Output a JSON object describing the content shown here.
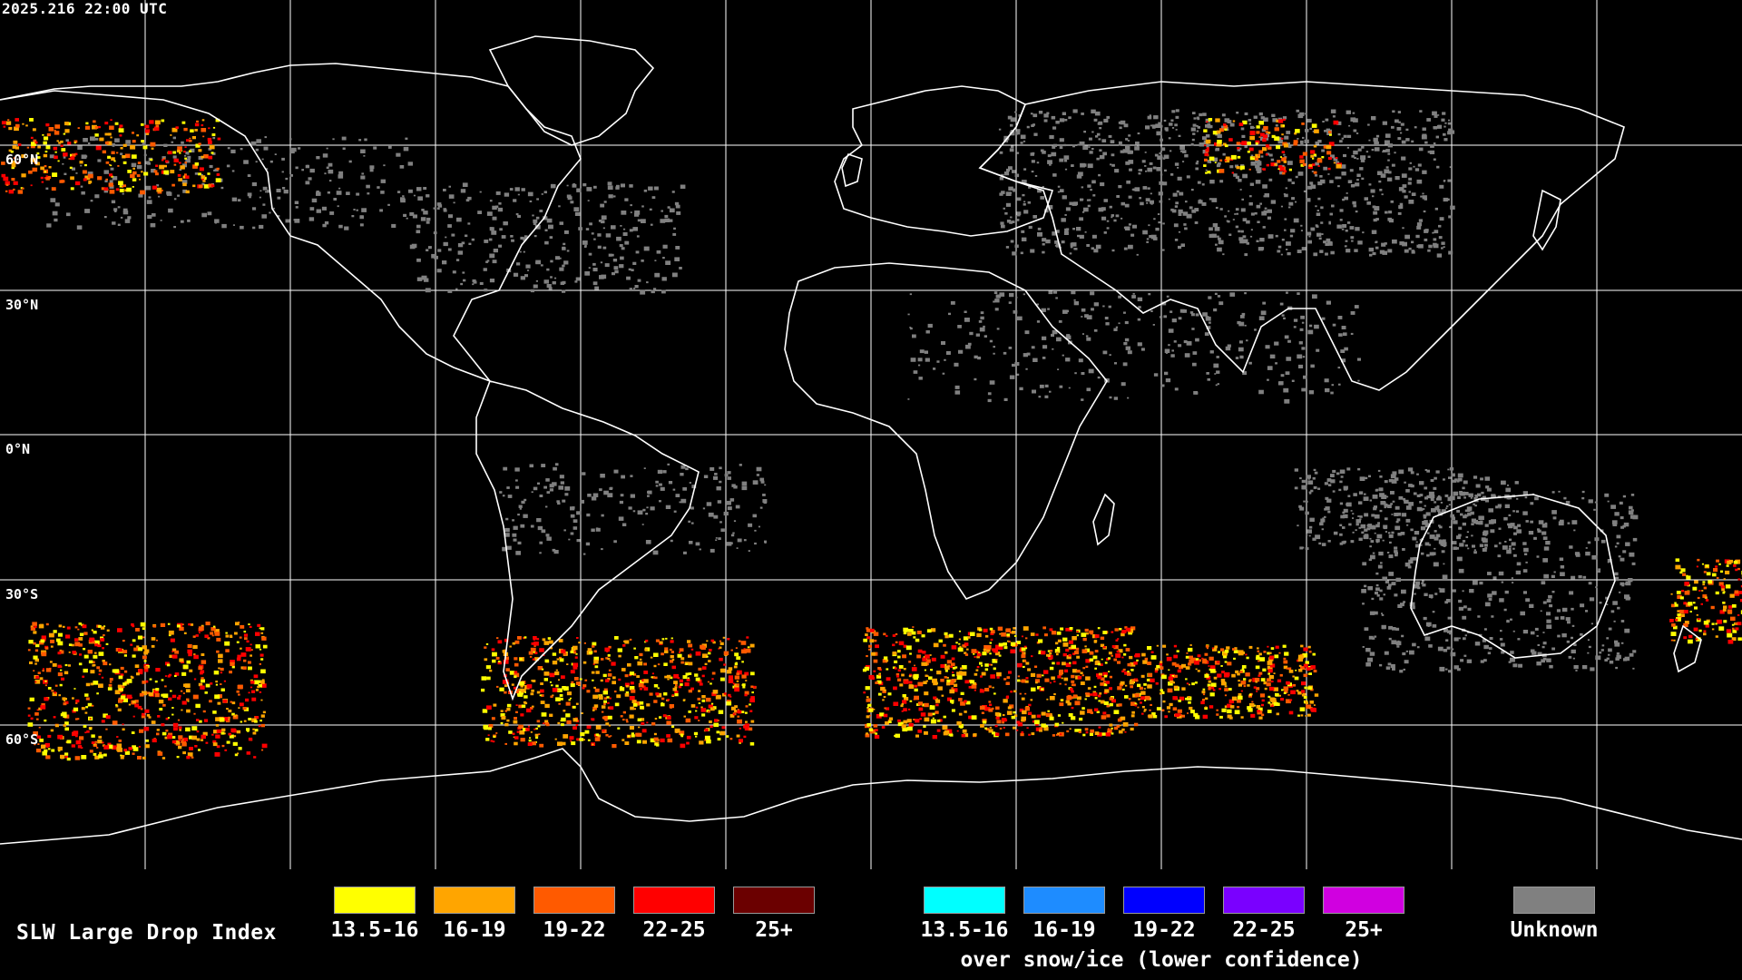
{
  "timestamp": "2025.216 22:00 UTC",
  "latitude_labels": [
    "60°N",
    "30°N",
    "0°N",
    "30°S",
    "60°S"
  ],
  "legend": {
    "title": "SLW Large Drop Index",
    "standard": [
      {
        "label": "13.5-16",
        "color": "#ffff00"
      },
      {
        "label": "16-19",
        "color": "#ffa500"
      },
      {
        "label": "19-22",
        "color": "#ff5a00"
      },
      {
        "label": "22-25",
        "color": "#ff0000"
      },
      {
        "label": "25+",
        "color": "#6b0000"
      }
    ],
    "snow_ice": [
      {
        "label": "13.5-16",
        "color": "#00ffff"
      },
      {
        "label": "16-19",
        "color": "#1e8cff"
      },
      {
        "label": "19-22",
        "color": "#0000ff"
      },
      {
        "label": "22-25",
        "color": "#7a00ff"
      },
      {
        "label": "25+",
        "color": "#d000e0"
      }
    ],
    "snow_ice_note": "over snow/ice (lower confidence)",
    "unknown": {
      "label": "Unknown",
      "color": "#808080"
    }
  },
  "map_colors": {
    "grid": "#ffffff",
    "coast": "#ffffff",
    "unknown": "#808080"
  }
}
